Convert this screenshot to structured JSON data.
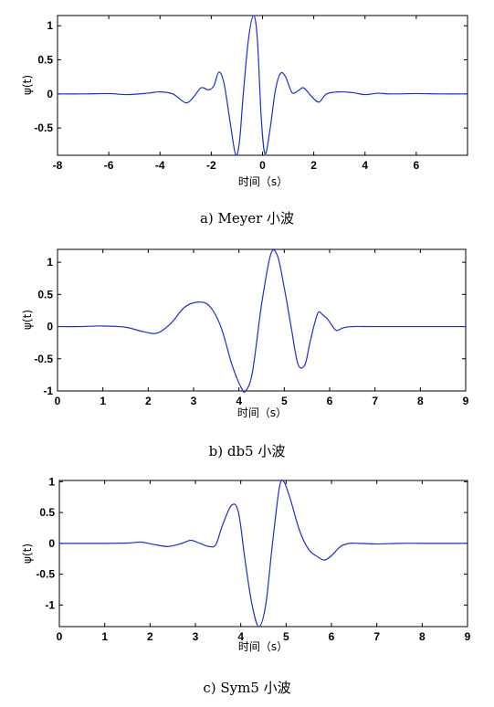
{
  "chart_data": [
    {
      "type": "line",
      "caption": "a) Meyer 小波",
      "xlabel": "时间（s）",
      "ylabel": "ψ(t)",
      "xlim": [
        -8,
        8
      ],
      "ylim": [
        -0.9,
        1.15
      ],
      "xticks": [
        -8,
        -6,
        -4,
        -2,
        0,
        2,
        4,
        6
      ],
      "yticks": [
        1,
        0.5,
        0,
        -0.5
      ],
      "grid": false,
      "series": [
        {
          "color": "#1f2dd6",
          "x": [
            -8,
            -7,
            -6,
            -5.3,
            -4.5,
            -4,
            -3.5,
            -3.0,
            -2.7,
            -2.4,
            -2.1,
            -1.9,
            -1.7,
            -1.5,
            -1.25,
            -1.05,
            -0.9,
            -0.75,
            -0.55,
            -0.35,
            -0.2,
            -0.05,
            0.1,
            0.3,
            0.5,
            0.7,
            0.9,
            1.15,
            1.4,
            1.6,
            1.9,
            2.2,
            2.5,
            3.0,
            3.5,
            4.0,
            4.5,
            5,
            6,
            7,
            8
          ],
          "y": [
            0,
            0,
            0.005,
            -0.01,
            0.01,
            0.03,
            0.0,
            -0.13,
            -0.05,
            0.09,
            0.06,
            0.12,
            0.32,
            0.15,
            -0.45,
            -0.89,
            -0.7,
            0.0,
            0.8,
            1.15,
            0.8,
            -0.35,
            -0.88,
            -0.5,
            0.05,
            0.3,
            0.25,
            0.02,
            0.05,
            0.09,
            -0.03,
            -0.12,
            0.0,
            0.03,
            0.02,
            -0.01,
            0.01,
            0.0,
            0.005,
            0,
            0
          ]
        }
      ]
    },
    {
      "type": "line",
      "caption": "b) db5 小波",
      "xlabel": "时间（s）",
      "ylabel": "ψ(t)",
      "xlim": [
        0,
        9
      ],
      "ylim": [
        -1,
        1.2
      ],
      "xticks": [
        0,
        1,
        2,
        3,
        4,
        5,
        6,
        7,
        8,
        9
      ],
      "yticks": [
        1,
        0.5,
        0,
        -0.5,
        -1
      ],
      "grid": false,
      "series": [
        {
          "color": "#1f2dd6",
          "x": [
            0,
            0.5,
            1.0,
            1.5,
            1.9,
            2.2,
            2.5,
            2.8,
            3.1,
            3.35,
            3.6,
            3.85,
            4.05,
            4.15,
            4.3,
            4.5,
            4.7,
            4.85,
            5.0,
            5.15,
            5.3,
            5.45,
            5.55,
            5.65,
            5.75,
            5.85,
            5.95,
            6.05,
            6.15,
            6.3,
            6.5,
            7,
            8,
            9
          ],
          "y": [
            0,
            0,
            0.01,
            -0.01,
            -0.08,
            -0.1,
            0.05,
            0.3,
            0.38,
            0.32,
            0.0,
            -0.6,
            -0.95,
            -1.0,
            -0.7,
            0.35,
            1.12,
            1.1,
            0.6,
            0.0,
            -0.58,
            -0.6,
            -0.3,
            0.0,
            0.22,
            0.18,
            0.12,
            0.02,
            -0.06,
            -0.02,
            0.0,
            0.0,
            0,
            0
          ]
        }
      ]
    },
    {
      "type": "line",
      "caption": "c) Sym5 小波",
      "xlabel": "时间（s）",
      "ylabel": "ψ(t)",
      "xlim": [
        0,
        9
      ],
      "ylim": [
        -1.35,
        1.02
      ],
      "xticks": [
        0,
        1,
        2,
        3,
        4,
        5,
        6,
        7,
        8,
        9
      ],
      "yticks": [
        1,
        0.5,
        0,
        -0.5,
        -1
      ],
      "grid": false,
      "series": [
        {
          "color": "#1f2dd6",
          "x": [
            0,
            0.5,
            1.0,
            1.5,
            1.8,
            2.1,
            2.4,
            2.7,
            2.9,
            3.1,
            3.3,
            3.45,
            3.6,
            3.8,
            3.95,
            4.1,
            4.25,
            4.4,
            4.55,
            4.7,
            4.85,
            4.95,
            5.1,
            5.3,
            5.5,
            5.7,
            5.85,
            6.0,
            6.2,
            6.4,
            6.6,
            7.0,
            7.5,
            8,
            9
          ],
          "y": [
            0,
            0,
            0.0,
            0.005,
            0.02,
            -0.02,
            -0.05,
            0.0,
            0.05,
            0.0,
            -0.05,
            -0.02,
            0.3,
            0.62,
            0.5,
            -0.3,
            -1.0,
            -1.35,
            -1.0,
            0.0,
            0.9,
            1.0,
            0.7,
            0.2,
            -0.1,
            -0.22,
            -0.27,
            -0.2,
            -0.05,
            0.0,
            0.0,
            -0.01,
            0.0,
            0,
            0
          ]
        }
      ]
    }
  ]
}
